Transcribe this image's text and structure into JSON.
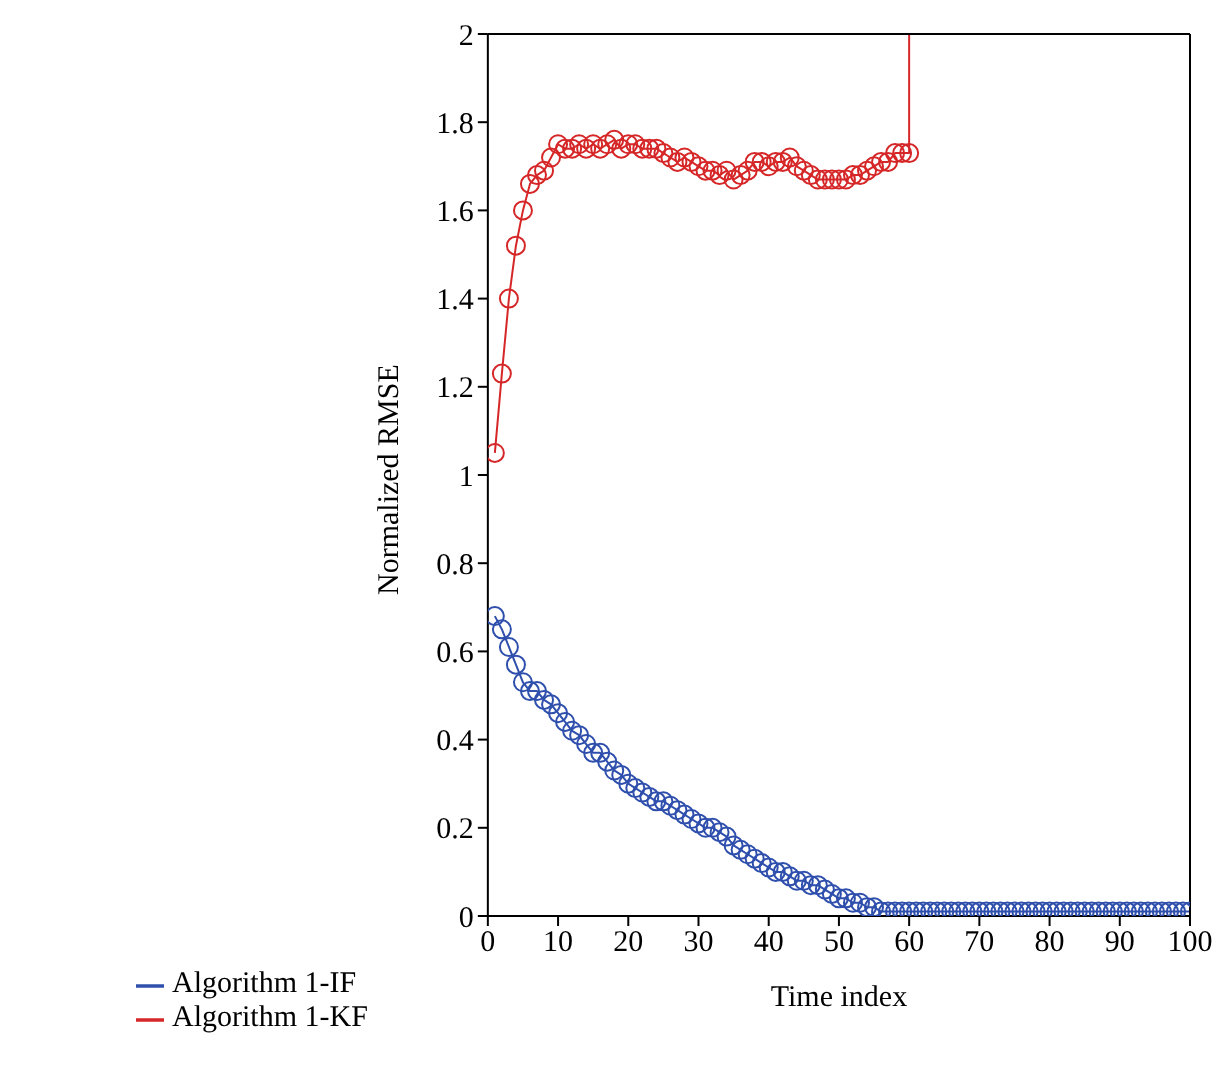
{
  "chart_data": {
    "type": "line",
    "xlabel": "Time index",
    "ylabel": "Normalized RMSE",
    "xlim": [
      0,
      100
    ],
    "xticks": [
      0,
      10,
      20,
      30,
      40,
      50,
      60,
      70,
      80,
      90,
      100
    ],
    "ylim": [
      0,
      2
    ],
    "yticks": [
      0,
      0.2,
      0.4,
      0.6,
      0.8,
      1,
      1.2,
      1.4,
      1.6,
      1.8,
      2
    ],
    "grid": false,
    "legend": "bottom left",
    "marker": "circle",
    "line_style": "solid",
    "series": [
      {
        "name": "Algorithm 1-IF",
        "color": "#2f4fad",
        "x": [
          1,
          2,
          3,
          4,
          5,
          6,
          7,
          8,
          9,
          10,
          11,
          12,
          13,
          14,
          15,
          16,
          17,
          18,
          19,
          20,
          21,
          22,
          23,
          24,
          25,
          26,
          27,
          28,
          29,
          30,
          31,
          32,
          33,
          34,
          35,
          36,
          37,
          38,
          39,
          40,
          41,
          42,
          43,
          44,
          45,
          46,
          47,
          48,
          49,
          50,
          51,
          52,
          53,
          54,
          55,
          56,
          57,
          58,
          59,
          60,
          61,
          62,
          63,
          64,
          65,
          66,
          67,
          68,
          69,
          70,
          71,
          72,
          73,
          74,
          75,
          76,
          77,
          78,
          79,
          80,
          81,
          82,
          83,
          84,
          85,
          86,
          87,
          88,
          89,
          90,
          91,
          92,
          93,
          94,
          95,
          96,
          97,
          98,
          99,
          100
        ],
        "values": [
          0.68,
          0.65,
          0.61,
          0.57,
          0.53,
          0.51,
          0.51,
          0.49,
          0.48,
          0.46,
          0.44,
          0.42,
          0.41,
          0.39,
          0.37,
          0.37,
          0.35,
          0.33,
          0.32,
          0.3,
          0.29,
          0.28,
          0.27,
          0.26,
          0.26,
          0.25,
          0.24,
          0.23,
          0.22,
          0.21,
          0.2,
          0.2,
          0.19,
          0.18,
          0.16,
          0.15,
          0.14,
          0.13,
          0.12,
          0.11,
          0.1,
          0.1,
          0.09,
          0.08,
          0.08,
          0.07,
          0.07,
          0.06,
          0.05,
          0.04,
          0.04,
          0.03,
          0.03,
          0.02,
          0.02,
          0.01,
          0.01,
          0.01,
          0.01,
          0.01,
          0.01,
          0.01,
          0.01,
          0.01,
          0.01,
          0.01,
          0.01,
          0.01,
          0.01,
          0.01,
          0.01,
          0.01,
          0.01,
          0.01,
          0.01,
          0.01,
          0.01,
          0.01,
          0.01,
          0.01,
          0.01,
          0.01,
          0.01,
          0.01,
          0.01,
          0.01,
          0.01,
          0.01,
          0.01,
          0.01,
          0.01,
          0.01,
          0.01,
          0.01,
          0.01,
          0.01,
          0.01,
          0.01,
          0.01,
          0.01
        ]
      },
      {
        "name": "Algorithm 1-KF",
        "color": "#d62728",
        "x": [
          1,
          2,
          3,
          4,
          5,
          6,
          7,
          8,
          9,
          10,
          11,
          12,
          13,
          14,
          15,
          16,
          17,
          18,
          19,
          20,
          21,
          22,
          23,
          24,
          25,
          26,
          27,
          28,
          29,
          30,
          31,
          32,
          33,
          34,
          35,
          36,
          37,
          38,
          39,
          40,
          41,
          42,
          43,
          44,
          45,
          46,
          47,
          48,
          49,
          50,
          51,
          52,
          53,
          54,
          55,
          56,
          57,
          58,
          59,
          60,
          60
        ],
        "values": [
          1.05,
          1.23,
          1.4,
          1.52,
          1.6,
          1.66,
          1.68,
          1.69,
          1.72,
          1.75,
          1.74,
          1.74,
          1.75,
          1.74,
          1.75,
          1.74,
          1.75,
          1.76,
          1.74,
          1.75,
          1.75,
          1.74,
          1.74,
          1.74,
          1.73,
          1.72,
          1.71,
          1.72,
          1.71,
          1.7,
          1.69,
          1.69,
          1.68,
          1.69,
          1.67,
          1.68,
          1.69,
          1.71,
          1.71,
          1.7,
          1.71,
          1.71,
          1.72,
          1.7,
          1.69,
          1.68,
          1.67,
          1.67,
          1.67,
          1.67,
          1.67,
          1.68,
          1.68,
          1.69,
          1.7,
          1.71,
          1.71,
          1.73,
          1.73,
          1.73,
          2
        ]
      }
    ]
  }
}
